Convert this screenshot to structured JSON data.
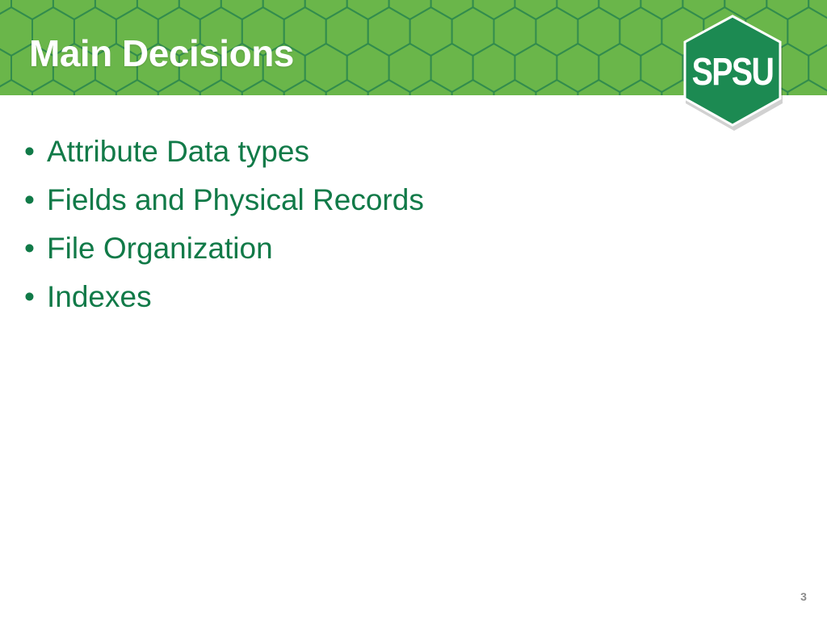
{
  "slide": {
    "title": "Main Decisions",
    "logo_text": "SPSU",
    "bullet_symbol": "•",
    "bullets": [
      "Attribute Data types",
      "Fields and Physical Records",
      "File Organization",
      "Indexes"
    ],
    "page_number": "3"
  },
  "icons": {
    "header_pattern": "hexagon-pattern",
    "logo_shape": "hexagon-logo"
  },
  "colors": {
    "header_green": "#6ab64a",
    "hex_line": "#2f8a4d",
    "logo_green": "#1c8a52",
    "bullet_text": "#117a48",
    "title_text": "#ffffff",
    "page_number": "#8a8a8a"
  }
}
